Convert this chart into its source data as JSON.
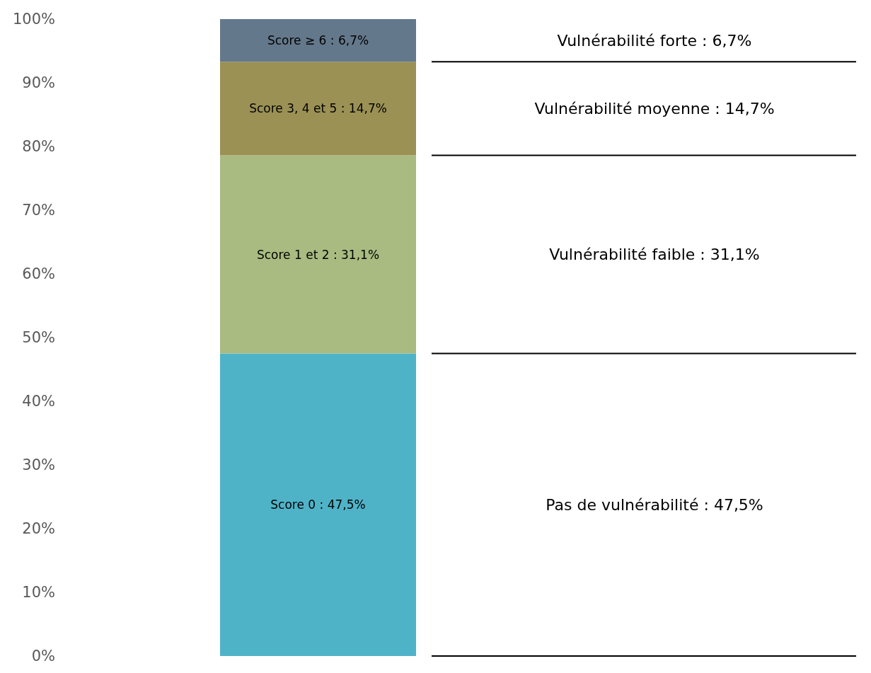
{
  "chart_data": {
    "type": "bar",
    "stacked": true,
    "categories": [
      null
    ],
    "series": [
      {
        "color": "#4fb3c8",
        "values": [
          47.5
        ],
        "value_labels": [
          "Score 0 : 47,5%"
        ]
      },
      {
        "color": "#a9bb80",
        "values": [
          31.1
        ],
        "value_labels": [
          "Score 1 et 2 : 31,1%"
        ]
      },
      {
        "color": "#9b9155",
        "values": [
          14.7
        ],
        "value_labels": [
          "Score 3, 4 et 5 : 14,7%"
        ]
      },
      {
        "color": "#64788b",
        "values": [
          6.7
        ],
        "value_labels": [
          "Score ≥ 6 : 6,7%"
        ]
      }
    ],
    "ylim": [
      0,
      100
    ],
    "yticks": [
      {
        "value": 0,
        "label": "0%"
      },
      {
        "value": 10,
        "label": "10%"
      },
      {
        "value": 20,
        "label": "20%"
      },
      {
        "value": 30,
        "label": "30%"
      },
      {
        "value": 40,
        "label": "40%"
      },
      {
        "value": 50,
        "label": "50%"
      },
      {
        "value": 60,
        "label": "60%"
      },
      {
        "value": 70,
        "label": "70%"
      },
      {
        "value": 80,
        "label": "80%"
      },
      {
        "value": 90,
        "label": "90%"
      },
      {
        "value": 100,
        "label": "100%"
      }
    ],
    "tick_labels": "y",
    "grid": false,
    "annotations": [
      "Vulnérabilité forte : 6,7%",
      "Vulnérabilité moyenne : 14,7%",
      "Vulnérabilité faible : 31,1%",
      "Pas de vulnérabilité : 47,5%"
    ]
  }
}
